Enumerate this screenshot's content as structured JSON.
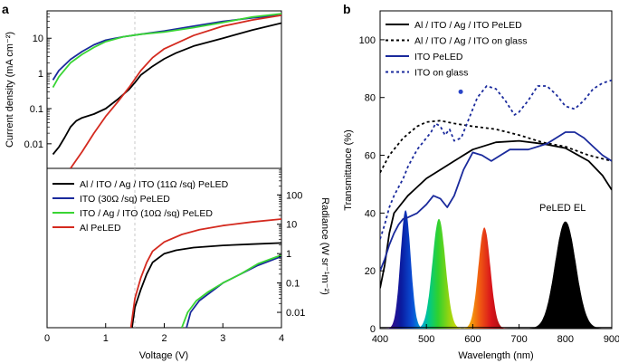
{
  "panel_labels": {
    "a": "a",
    "b": "b"
  },
  "chart_data": [
    {
      "id": "a-top",
      "type": "line",
      "scale": "log-y",
      "xlim": [
        0,
        4
      ],
      "ylim": [
        0.002,
        60
      ],
      "ylabel": "Current density (mA cm⁻²)",
      "yticks": [
        {
          "v": 0.01,
          "label": "0.01"
        },
        {
          "v": 0.1,
          "label": "0.1"
        },
        {
          "v": 1,
          "label": "1"
        },
        {
          "v": 10,
          "label": "10"
        }
      ],
      "series": [
        {
          "name": "Al / ITO / Ag / ITO (11Ω /sq) PeLED",
          "color": "#000000",
          "x": [
            0.1,
            0.2,
            0.3,
            0.4,
            0.5,
            0.6,
            0.8,
            1.0,
            1.2,
            1.4,
            1.5,
            1.6,
            1.8,
            2.0,
            2.2,
            2.5,
            3.0,
            3.5,
            4.0
          ],
          "y": [
            0.005,
            0.008,
            0.015,
            0.03,
            0.045,
            0.055,
            0.07,
            0.1,
            0.18,
            0.35,
            0.55,
            0.9,
            1.6,
            2.6,
            3.8,
            6.0,
            10,
            17,
            27
          ]
        },
        {
          "name": "ITO (30Ω /sq) PeLED",
          "color": "#1a2a9c",
          "x": [
            0.1,
            0.2,
            0.4,
            0.6,
            0.8,
            1.0,
            1.3,
            1.6,
            2.0,
            2.5,
            3.0,
            3.5,
            4.0
          ],
          "y": [
            0.65,
            1.2,
            2.5,
            4.2,
            6.5,
            8.8,
            11,
            13,
            16,
            22,
            30,
            38,
            45
          ]
        },
        {
          "name": "ITO / Ag / ITO (10Ω /sq) PeLED",
          "color": "#39d534",
          "x": [
            0.1,
            0.2,
            0.4,
            0.6,
            0.8,
            1.0,
            1.3,
            1.6,
            2.0,
            2.5,
            3.0,
            3.5,
            4.0
          ],
          "y": [
            0.4,
            0.8,
            2.0,
            3.5,
            5.5,
            8.0,
            11,
            13,
            15,
            20,
            28,
            40,
            50
          ]
        },
        {
          "name": "Al PeLED",
          "color": "#d42a1f",
          "x": [
            0.4,
            0.6,
            0.8,
            1.0,
            1.2,
            1.4,
            1.6,
            1.8,
            2.0,
            2.5,
            3.0,
            3.5,
            4.0
          ],
          "y": [
            0.002,
            0.006,
            0.02,
            0.06,
            0.15,
            0.4,
            1.2,
            2.8,
            5.0,
            12,
            22,
            33,
            45
          ]
        }
      ]
    },
    {
      "id": "a-bottom",
      "type": "line",
      "scale": "log-y",
      "xlim": [
        0,
        4
      ],
      "ylim": [
        0.003,
        800
      ],
      "xlabel": "Voltage (V)",
      "ylabel": "Radiance (W sr⁻¹m⁻²)",
      "xticks": [
        0,
        1,
        2,
        3,
        4
      ],
      "yticks": [
        {
          "v": 0.01,
          "label": "0.01"
        },
        {
          "v": 0.1,
          "label": "0.1"
        },
        {
          "v": 1,
          "label": "1"
        },
        {
          "v": 10,
          "label": "10"
        },
        {
          "v": 100,
          "label": "100"
        }
      ],
      "series": [
        {
          "name": "Al / ITO / Ag / ITO (11Ω /sq) PeLED",
          "color": "#000000",
          "x": [
            1.45,
            1.5,
            1.6,
            1.7,
            1.8,
            2.0,
            2.2,
            2.5,
            3.0,
            3.5,
            4.0
          ],
          "y": [
            0.003,
            0.015,
            0.06,
            0.2,
            0.5,
            1.0,
            1.3,
            1.6,
            1.9,
            2.1,
            2.3
          ]
        },
        {
          "name": "ITO (30Ω /sq) PeLED",
          "color": "#1a2a9c",
          "x": [
            2.38,
            2.45,
            2.6,
            2.8,
            3.0,
            3.3,
            3.6,
            4.0
          ],
          "y": [
            0.003,
            0.01,
            0.025,
            0.05,
            0.1,
            0.2,
            0.4,
            0.8
          ]
        },
        {
          "name": "ITO / Ag / ITO (10Ω /sq) PeLED",
          "color": "#39d534",
          "x": [
            2.3,
            2.4,
            2.55,
            2.75,
            3.0,
            3.3,
            3.6,
            4.0
          ],
          "y": [
            0.003,
            0.01,
            0.025,
            0.05,
            0.1,
            0.2,
            0.45,
            0.9
          ]
        },
        {
          "name": "Al PeLED",
          "color": "#d42a1f",
          "x": [
            1.43,
            1.5,
            1.6,
            1.7,
            1.8,
            2.0,
            2.3,
            2.6,
            3.0,
            3.5,
            4.0
          ],
          "y": [
            0.003,
            0.03,
            0.15,
            0.5,
            1.2,
            2.5,
            4.5,
            6.5,
            9.0,
            12,
            15
          ]
        }
      ]
    },
    {
      "id": "b",
      "type": "line",
      "xlim": [
        400,
        900
      ],
      "ylim": [
        0,
        110
      ],
      "xlabel": "Wavelength (nm)",
      "ylabel": "Transmittance (%)",
      "xticks": [
        400,
        500,
        600,
        700,
        800,
        900
      ],
      "yticks": [
        0,
        20,
        40,
        60,
        80,
        100
      ],
      "annotation": "PeLED EL",
      "series": [
        {
          "name": "Al / ITO / Ag / ITO PeLED",
          "color": "#000000",
          "dash": false,
          "x": [
            400,
            410,
            420,
            430,
            440,
            450,
            460,
            480,
            500,
            530,
            560,
            600,
            650,
            700,
            750,
            800,
            850,
            880,
            900
          ],
          "y": [
            14,
            22,
            33,
            40,
            42,
            44,
            46,
            49,
            52,
            55,
            58,
            62,
            64.5,
            65,
            64,
            62.5,
            58,
            53,
            48
          ]
        },
        {
          "name": "Al / ITO / Ag / ITO on glass",
          "color": "#000000",
          "dash": true,
          "x": [
            400,
            420,
            450,
            480,
            500,
            530,
            560,
            600,
            650,
            700,
            750,
            800,
            850,
            900
          ],
          "y": [
            54,
            60,
            66,
            70,
            71.5,
            72,
            71,
            70,
            69,
            67,
            64.5,
            63,
            60,
            58
          ]
        },
        {
          "name": "ITO PeLED",
          "color": "#1a2a9c",
          "dash": false,
          "x": [
            400,
            410,
            420,
            430,
            440,
            450,
            460,
            480,
            500,
            515,
            530,
            545,
            560,
            580,
            600,
            620,
            640,
            660,
            680,
            700,
            720,
            740,
            760,
            780,
            800,
            820,
            840,
            860,
            880,
            900
          ],
          "y": [
            20,
            24,
            29,
            33,
            36,
            38,
            38.5,
            40,
            43,
            46,
            45,
            42,
            46,
            55,
            61,
            60,
            58,
            60,
            62,
            62,
            62,
            63,
            64,
            66,
            68,
            68,
            66,
            63,
            60,
            58
          ]
        },
        {
          "name": "ITO on glass",
          "color": "#1a2a9c",
          "dash": true,
          "x": [
            400,
            410,
            420,
            430,
            440,
            450,
            460,
            470,
            480,
            490,
            500,
            510,
            520,
            530,
            540,
            550,
            560,
            575,
            590,
            610,
            630,
            650,
            670,
            690,
            700,
            720,
            740,
            760,
            780,
            800,
            820,
            840,
            860,
            880,
            900
          ],
          "y": [
            31,
            36,
            42,
            46,
            49,
            52,
            56,
            59,
            62,
            64,
            66,
            68,
            71,
            70,
            67,
            69,
            65,
            66,
            72,
            80,
            84,
            83,
            79,
            74,
            75,
            79,
            84,
            84,
            81,
            77,
            76,
            79,
            83,
            85,
            86
          ]
        }
      ],
      "el_peaks": [
        {
          "center": 455,
          "width": 11,
          "height": 41,
          "color": "#0b1a9a"
        },
        {
          "center": 527,
          "width": 14,
          "height": 38,
          "color": "#3bd23b"
        },
        {
          "center": 625,
          "width": 13,
          "height": 35,
          "color": "#e52a12"
        },
        {
          "center": 800,
          "width": 22,
          "height": 37,
          "color": "#000000"
        }
      ],
      "marker": {
        "x": 574,
        "y": 82,
        "color": "#2a45c8"
      }
    }
  ],
  "legends": {
    "a": [
      "Al / ITO / Ag / ITO (11Ω /sq) PeLED",
      "ITO (30Ω /sq) PeLED",
      "ITO / Ag / ITO (10Ω /sq) PeLED",
      "Al PeLED"
    ],
    "b": [
      "Al / ITO / Ag / ITO PeLED",
      "Al / ITO / Ag / ITO on glass",
      "ITO PeLED",
      "ITO on glass"
    ]
  }
}
